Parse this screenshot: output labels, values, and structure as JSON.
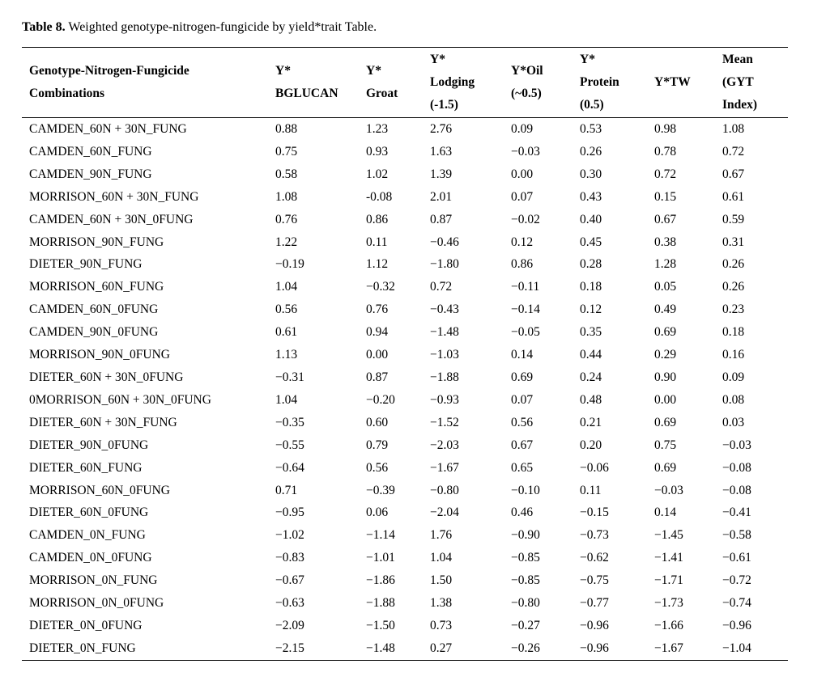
{
  "caption": {
    "label": "Table 8.",
    "text": " Weighted genotype-nitrogen-fungicide by yield*trait Table."
  },
  "table": {
    "headers": [
      [
        "Genotype-Nitrogen-Fungicide",
        "Combinations"
      ],
      [
        "Y*",
        "BGLUCAN"
      ],
      [
        "Y*",
        "Groat"
      ],
      [
        "Y*",
        "Lodging",
        "(-1.5)"
      ],
      [
        "Y*Oil",
        "(~0.5)"
      ],
      [
        "Y*",
        "Protein",
        "(0.5)"
      ],
      [
        "Y*TW"
      ],
      [
        "Mean",
        "(GYT",
        "Index)"
      ]
    ],
    "rows": [
      [
        "CAMDEN_60N + 30N_FUNG",
        "0.88",
        "1.23",
        "2.76",
        "0.09",
        "0.53",
        "0.98",
        "1.08"
      ],
      [
        "CAMDEN_60N_FUNG",
        "0.75",
        "0.93",
        "1.63",
        "−0.03",
        "0.26",
        "0.78",
        "0.72"
      ],
      [
        "CAMDEN_90N_FUNG",
        "0.58",
        "1.02",
        "1.39",
        "0.00",
        "0.30",
        "0.72",
        "0.67"
      ],
      [
        "MORRISON_60N + 30N_FUNG",
        "1.08",
        "-0.08",
        "2.01",
        "0.07",
        "0.43",
        "0.15",
        "0.61"
      ],
      [
        "CAMDEN_60N + 30N_0FUNG",
        "0.76",
        "0.86",
        "0.87",
        "−0.02",
        "0.40",
        "0.67",
        "0.59"
      ],
      [
        "MORRISON_90N_FUNG",
        "1.22",
        "0.11",
        "−0.46",
        "0.12",
        "0.45",
        "0.38",
        "0.31"
      ],
      [
        "DIETER_90N_FUNG",
        "−0.19",
        "1.12",
        "−1.80",
        "0.86",
        "0.28",
        "1.28",
        "0.26"
      ],
      [
        "MORRISON_60N_FUNG",
        "1.04",
        "−0.32",
        "0.72",
        "−0.11",
        "0.18",
        "0.05",
        "0.26"
      ],
      [
        "CAMDEN_60N_0FUNG",
        "0.56",
        "0.76",
        "−0.43",
        "−0.14",
        "0.12",
        "0.49",
        "0.23"
      ],
      [
        "CAMDEN_90N_0FUNG",
        "0.61",
        "0.94",
        "−1.48",
        "−0.05",
        "0.35",
        "0.69",
        "0.18"
      ],
      [
        "MORRISON_90N_0FUNG",
        "1.13",
        "0.00",
        "−1.03",
        "0.14",
        "0.44",
        "0.29",
        "0.16"
      ],
      [
        "DIETER_60N + 30N_0FUNG",
        "−0.31",
        "0.87",
        "−1.88",
        "0.69",
        "0.24",
        "0.90",
        "0.09"
      ],
      [
        "0MORRISON_60N + 30N_0FUNG",
        "1.04",
        "−0.20",
        "−0.93",
        "0.07",
        "0.48",
        "0.00",
        "0.08"
      ],
      [
        "DIETER_60N + 30N_FUNG",
        "−0.35",
        "0.60",
        "−1.52",
        "0.56",
        "0.21",
        "0.69",
        "0.03"
      ],
      [
        "DIETER_90N_0FUNG",
        "−0.55",
        "0.79",
        "−2.03",
        "0.67",
        "0.20",
        "0.75",
        "−0.03"
      ],
      [
        "DIETER_60N_FUNG",
        "−0.64",
        "0.56",
        "−1.67",
        "0.65",
        "−0.06",
        "0.69",
        "−0.08"
      ],
      [
        "MORRISON_60N_0FUNG",
        "0.71",
        "−0.39",
        "−0.80",
        "−0.10",
        "0.11",
        "−0.03",
        "−0.08"
      ],
      [
        "DIETER_60N_0FUNG",
        "−0.95",
        "0.06",
        "−2.04",
        "0.46",
        "−0.15",
        "0.14",
        "−0.41"
      ],
      [
        "CAMDEN_0N_FUNG",
        "−1.02",
        "−1.14",
        "1.76",
        "−0.90",
        "−0.73",
        "−1.45",
        "−0.58"
      ],
      [
        "CAMDEN_0N_0FUNG",
        "−0.83",
        "−1.01",
        "1.04",
        "−0.85",
        "−0.62",
        "−1.41",
        "−0.61"
      ],
      [
        "MORRISON_0N_FUNG",
        "−0.67",
        "−1.86",
        "1.50",
        "−0.85",
        "−0.75",
        "−1.71",
        "−0.72"
      ],
      [
        "MORRISON_0N_0FUNG",
        "−0.63",
        "−1.88",
        "1.38",
        "−0.80",
        "−0.77",
        "−1.73",
        "−0.74"
      ],
      [
        "DIETER_0N_0FUNG",
        "−2.09",
        "−1.50",
        "0.73",
        "−0.27",
        "−0.96",
        "−1.66",
        "−0.96"
      ],
      [
        "DIETER_0N_FUNG",
        "−2.15",
        "−1.48",
        "0.27",
        "−0.26",
        "−0.96",
        "−1.67",
        "−1.04"
      ]
    ]
  }
}
